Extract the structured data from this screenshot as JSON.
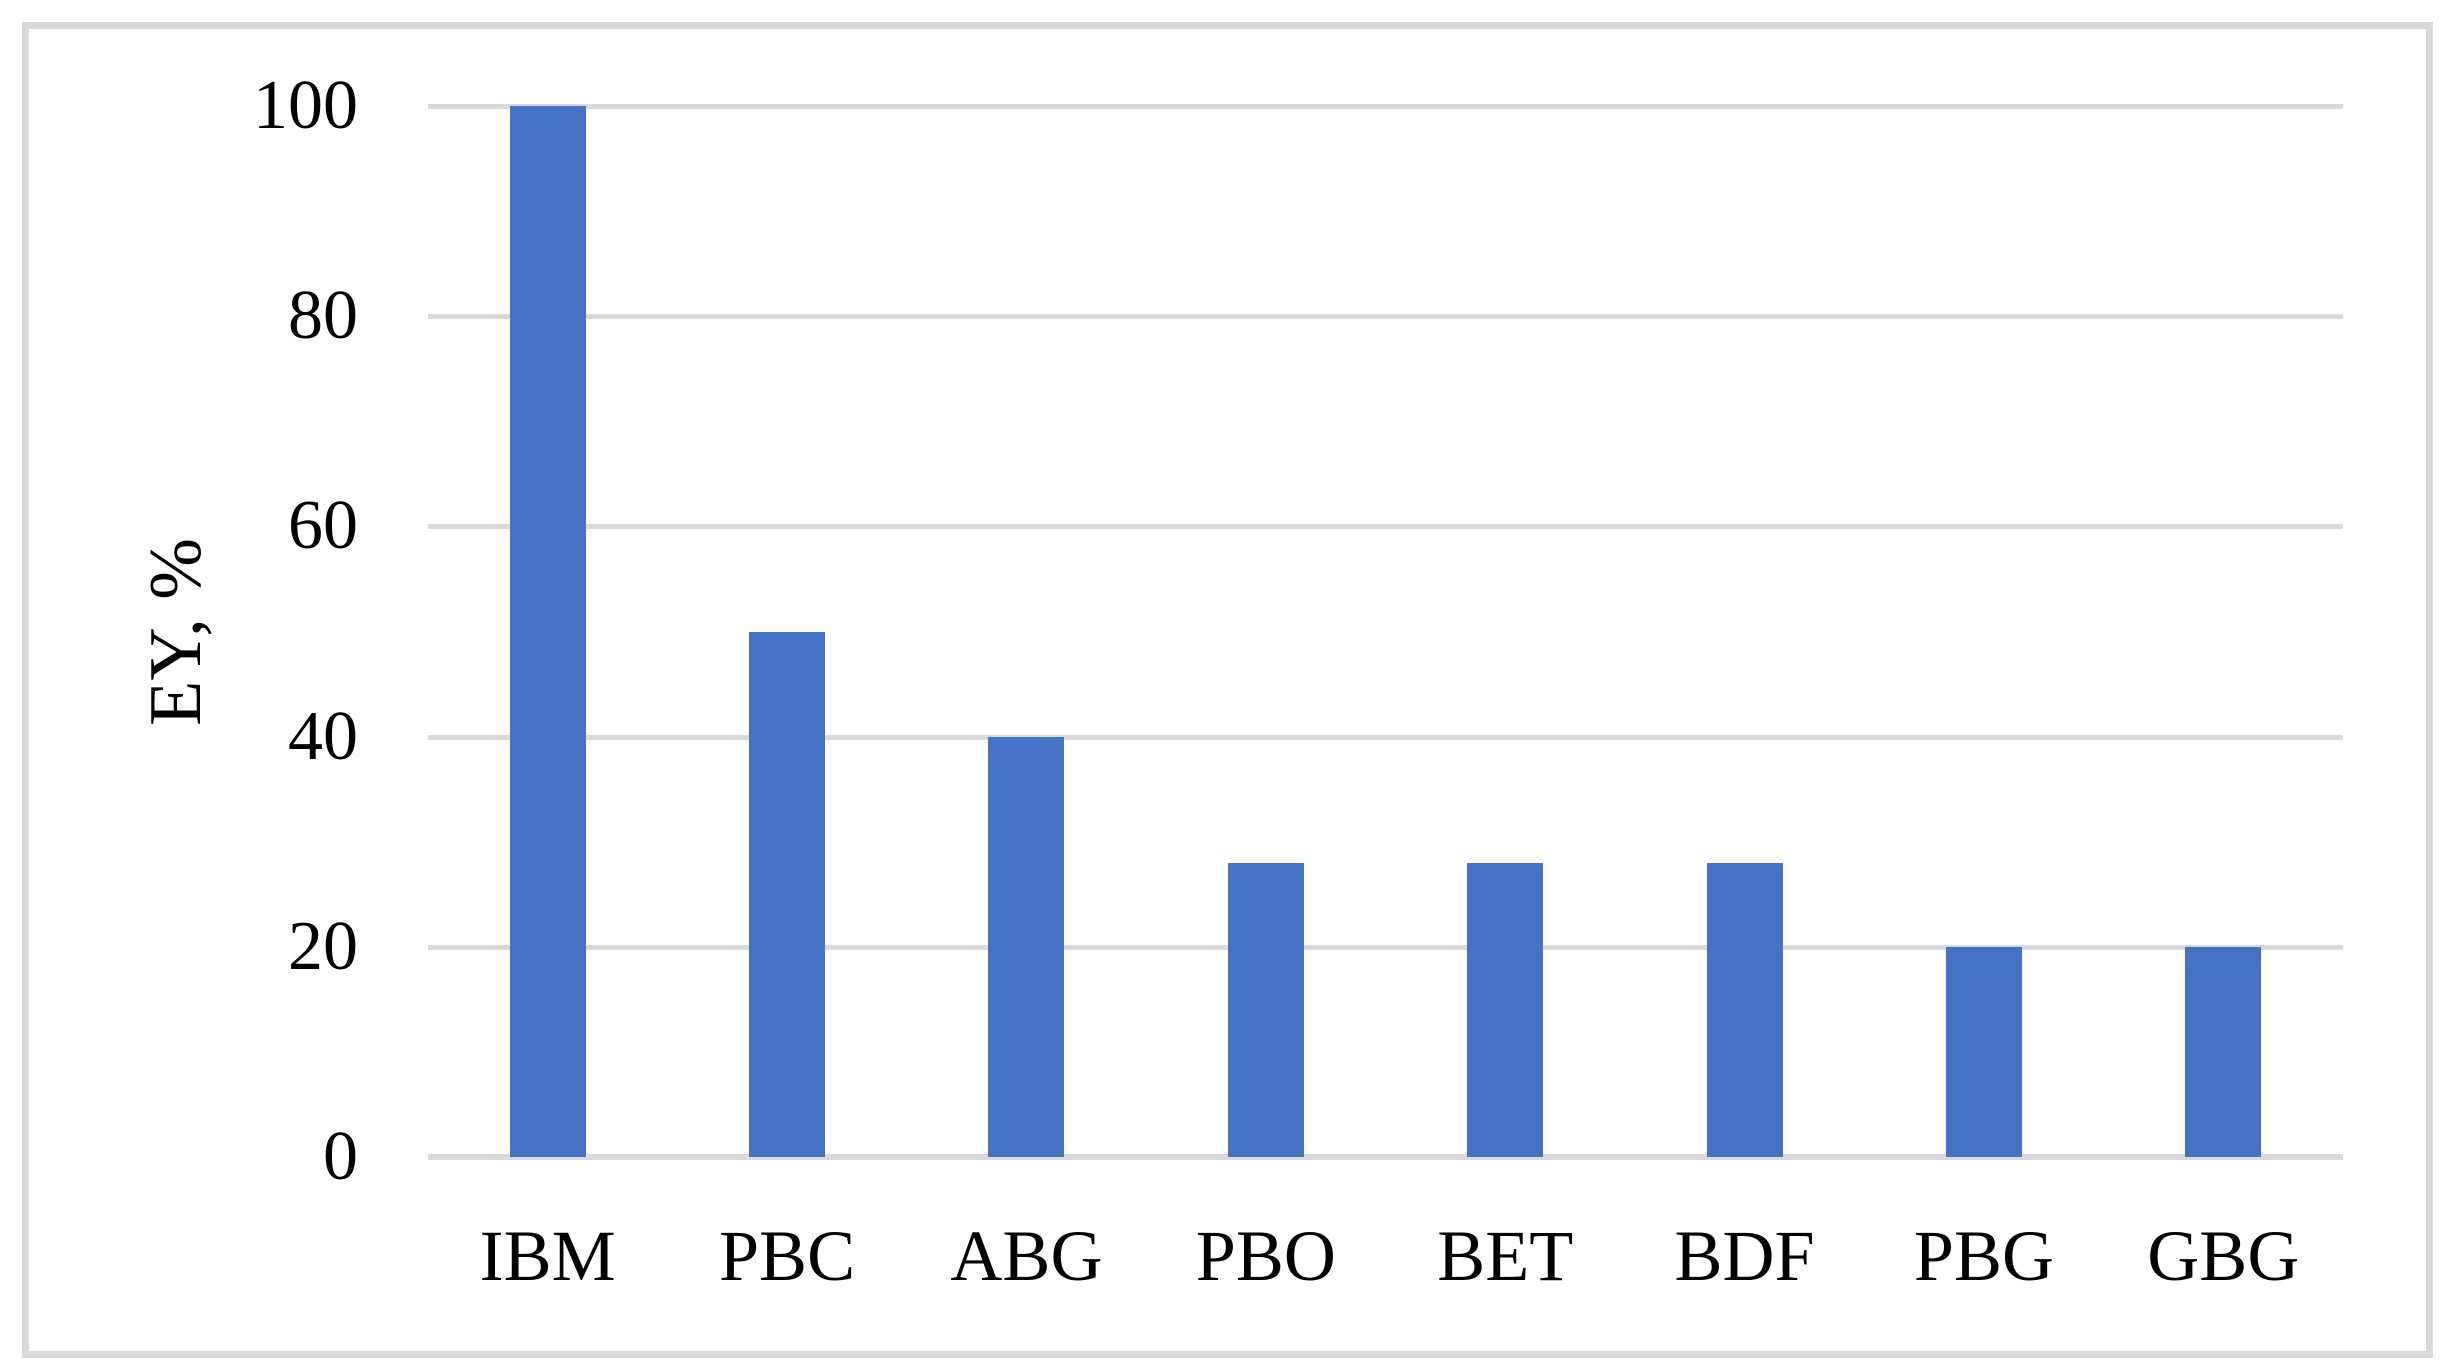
{
  "chart_data": {
    "type": "bar",
    "title": "",
    "categories": [
      "IBM",
      "PBC",
      "ABG",
      "PBO",
      "BET",
      "BDF",
      "PBG",
      "GBG"
    ],
    "values": [
      100,
      50,
      40,
      28,
      28,
      28,
      20,
      20
    ],
    "xlabel": "",
    "ylabel": "EY, %",
    "yticks": [
      0,
      20,
      40,
      60,
      80,
      100
    ],
    "ylim": [
      0,
      100
    ],
    "grid": "horizontal-only",
    "legend_position": "none",
    "bar_color": "#4472c4",
    "gridline_color": "#d9d9d9",
    "axis_line_color": "#d9d9d9",
    "frame_border_color": "#d9d9d9",
    "text_color": "#000000",
    "background_color": "#ffffff"
  }
}
